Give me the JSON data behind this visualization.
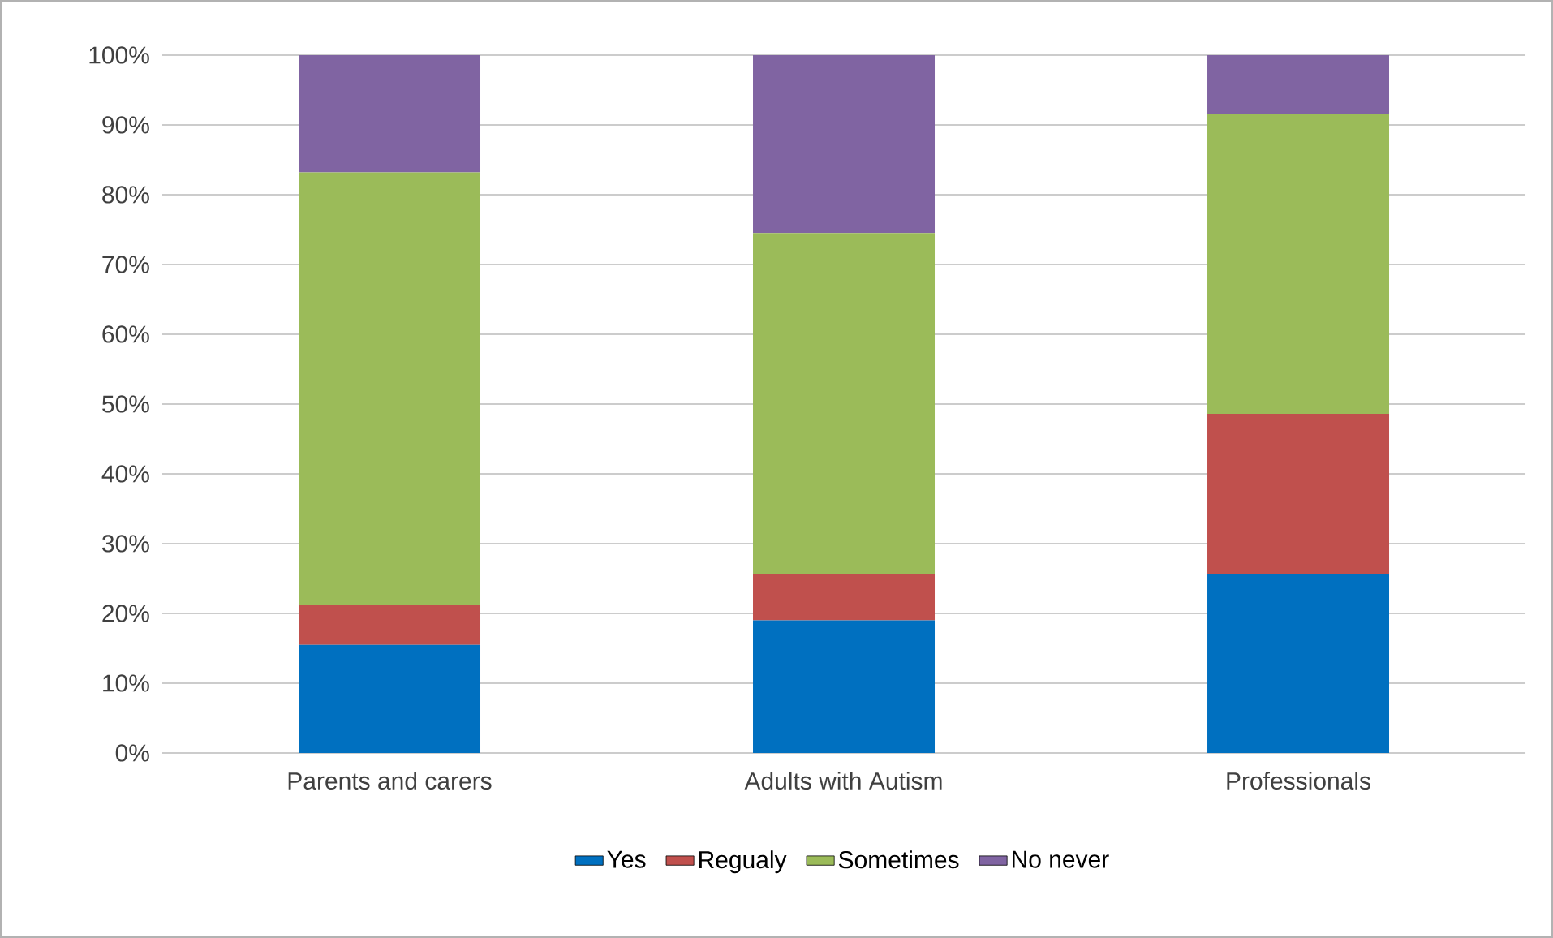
{
  "chart_data": {
    "type": "bar",
    "stacked": true,
    "categories": [
      "Parents and carers",
      "Adults with Autism",
      "Professionals"
    ],
    "series": [
      {
        "name": "Yes",
        "color": "#0070c0",
        "values": [
          15.5,
          19.0,
          25.6
        ]
      },
      {
        "name": "Regualy",
        "color": "#c0504d",
        "values": [
          5.7,
          6.6,
          23.0
        ]
      },
      {
        "name": "Sometimes",
        "color": "#9bbb59",
        "values": [
          62.0,
          48.9,
          42.9
        ]
      },
      {
        "name": "No never",
        "color": "#8064a2",
        "values": [
          16.8,
          25.5,
          8.5
        ]
      }
    ],
    "ylim": [
      0,
      100
    ],
    "yticks": [
      {
        "value": 0,
        "label": "0%"
      },
      {
        "value": 10,
        "label": "10%"
      },
      {
        "value": 20,
        "label": "20%"
      },
      {
        "value": 30,
        "label": "30%"
      },
      {
        "value": 40,
        "label": "40%"
      },
      {
        "value": 50,
        "label": "50%"
      },
      {
        "value": 60,
        "label": "60%"
      },
      {
        "value": 70,
        "label": "70%"
      },
      {
        "value": 80,
        "label": "80%"
      },
      {
        "value": 90,
        "label": "90%"
      },
      {
        "value": 100,
        "label": "100%"
      }
    ],
    "grid": "y",
    "legend": "bottom"
  }
}
